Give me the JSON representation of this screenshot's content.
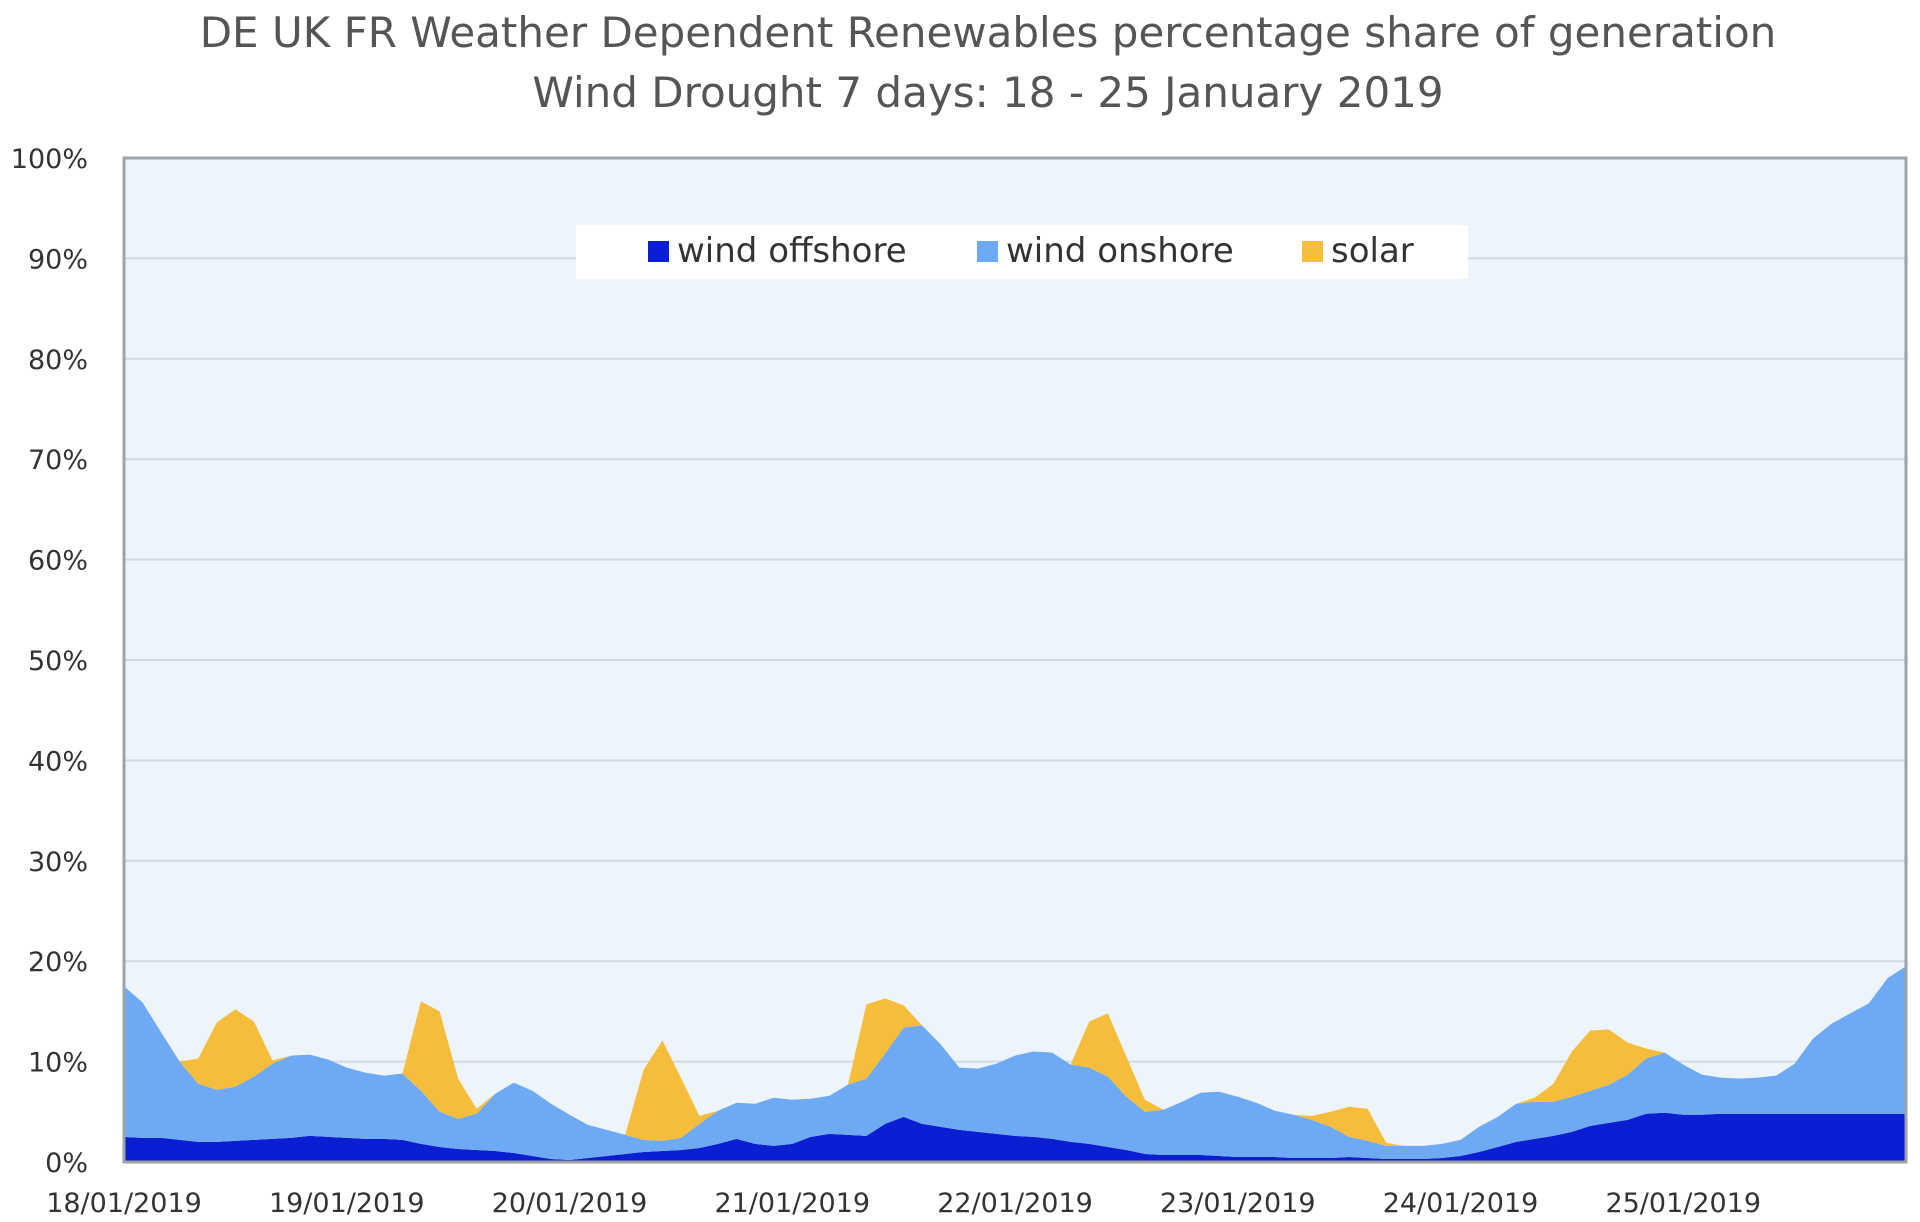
{
  "chart_data": {
    "type": "area",
    "stacked": true,
    "title": "DE UK FR Weather Dependent Renewables percentage share of generation",
    "subtitle": "Wind Drought 7 days:  18 - 25 January 2019",
    "xlabel": "",
    "ylabel": "",
    "ylim": [
      0,
      100
    ],
    "x_start": "18/01/2019",
    "x_end": "26/01/2019",
    "x_ticks": [
      "18/01/2019",
      "19/01/2019",
      "20/01/2019",
      "21/01/2019",
      "22/01/2019",
      "23/01/2019",
      "24/01/2019",
      "25/01/2019"
    ],
    "y_ticks": [
      "0%",
      "10%",
      "20%",
      "30%",
      "40%",
      "50%",
      "60%",
      "70%",
      "80%",
      "90%",
      "100%"
    ],
    "grid": true,
    "legend_position": "top-center",
    "colors": {
      "wind offshore": "#0a1fd1",
      "wind onshore": "#6eaaf4",
      "solar": "#f5bd3b",
      "plot_background": "#edf4fc",
      "gridline": "#d4d9e2",
      "frame": "#9ea3a8"
    },
    "x_day_offset": [
      0,
      0.083,
      0.167,
      0.25,
      0.333,
      0.417,
      0.5,
      0.583,
      0.667,
      0.75,
      0.833,
      0.917,
      1,
      1.083,
      1.167,
      1.25,
      1.333,
      1.417,
      1.5,
      1.583,
      1.667,
      1.75,
      1.833,
      1.917,
      2,
      2.083,
      2.167,
      2.25,
      2.333,
      2.417,
      2.5,
      2.583,
      2.667,
      2.75,
      2.833,
      2.917,
      3,
      3.083,
      3.167,
      3.25,
      3.333,
      3.417,
      3.5,
      3.583,
      3.667,
      3.75,
      3.833,
      3.917,
      4,
      4.083,
      4.167,
      4.25,
      4.333,
      4.417,
      4.5,
      4.583,
      4.667,
      4.75,
      4.833,
      4.917,
      5,
      5.083,
      5.167,
      5.25,
      5.333,
      5.417,
      5.5,
      5.583,
      5.667,
      5.75,
      5.833,
      5.917,
      6,
      6.083,
      6.167,
      6.25,
      6.333,
      6.417,
      6.5,
      6.583,
      6.667,
      6.75,
      6.833,
      6.917,
      7,
      7.083,
      7.167,
      7.25,
      7.333,
      7.417,
      7.5,
      7.583,
      7.667,
      7.75,
      7.833,
      7.917,
      8
    ],
    "series": [
      {
        "name": "wind offshore",
        "values": [
          2.5,
          2.4,
          2.4,
          2.2,
          2.0,
          2.0,
          2.1,
          2.2,
          2.3,
          2.4,
          2.6,
          2.5,
          2.4,
          2.3,
          2.3,
          2.2,
          1.8,
          1.5,
          1.3,
          1.2,
          1.1,
          0.9,
          0.6,
          0.3,
          0.2,
          0.4,
          0.6,
          0.8,
          1.0,
          1.1,
          1.2,
          1.4,
          1.8,
          2.3,
          1.8,
          1.6,
          1.8,
          2.5,
          2.8,
          2.7,
          2.6,
          3.8,
          4.5,
          3.8,
          3.5,
          3.2,
          3.0,
          2.8,
          2.6,
          2.5,
          2.3,
          2.0,
          1.8,
          1.5,
          1.2,
          0.8,
          0.7,
          0.7,
          0.7,
          0.6,
          0.5,
          0.5,
          0.5,
          0.4,
          0.4,
          0.4,
          0.5,
          0.4,
          0.3,
          0.3,
          0.3,
          0.4,
          0.6,
          1.0,
          1.5,
          2.0,
          2.3,
          2.6,
          3.0,
          3.6,
          3.9,
          4.2,
          4.8,
          4.9,
          4.7,
          4.7,
          4.8,
          4.8,
          4.8,
          4.8,
          4.8,
          4.8,
          4.8,
          4.8,
          4.8,
          4.8,
          4.8
        ]
      },
      {
        "name": "wind onshore",
        "values": [
          15.0,
          13.5,
          10.5,
          7.8,
          5.8,
          5.2,
          5.4,
          6.3,
          7.5,
          8.2,
          8.1,
          7.7,
          7.0,
          6.6,
          6.3,
          6.6,
          5.3,
          3.5,
          3.0,
          3.6,
          5.7,
          7.0,
          6.5,
          5.5,
          4.5,
          3.3,
          2.6,
          1.9,
          1.2,
          1.0,
          1.2,
          2.4,
          3.3,
          3.6,
          4.0,
          4.8,
          4.4,
          3.8,
          3.8,
          5.0,
          5.7,
          7.0,
          8.9,
          9.8,
          8.2,
          6.2,
          6.3,
          7.0,
          8.0,
          8.5,
          8.6,
          7.7,
          7.6,
          7.0,
          5.3,
          4.2,
          4.5,
          5.3,
          6.2,
          6.4,
          6.0,
          5.4,
          4.6,
          4.3,
          3.8,
          3.1,
          2.0,
          1.7,
          1.3,
          1.3,
          1.3,
          1.4,
          1.6,
          2.5,
          3.0,
          3.8,
          3.7,
          3.4,
          3.5,
          3.5,
          3.8,
          4.5,
          5.5,
          6.0,
          5.0,
          4.0,
          3.6,
          3.5,
          3.6,
          3.8,
          5.0,
          7.5,
          9.0,
          10.0,
          11.0,
          13.5,
          14.7
        ]
      },
      {
        "name": "solar",
        "values": [
          0,
          0,
          0,
          0,
          2.5,
          6.7,
          7.7,
          5.5,
          0.3,
          0,
          0,
          0,
          0,
          0,
          0,
          0,
          8.9,
          10.0,
          4.0,
          0.5,
          0,
          0,
          0,
          0,
          0,
          0,
          0,
          0,
          7.0,
          10.0,
          6.0,
          0.8,
          0,
          0,
          0,
          0,
          0,
          0,
          0,
          0,
          7.4,
          5.5,
          2.2,
          0,
          0,
          0,
          0,
          0,
          0,
          0,
          0,
          0,
          4.6,
          6.3,
          4.0,
          1.2,
          0,
          0,
          0,
          0,
          0,
          0,
          0,
          0,
          0.4,
          1.5,
          3.0,
          3.2,
          0.3,
          0,
          0,
          0,
          0,
          0,
          0,
          0,
          0.4,
          1.8,
          4.5,
          6.0,
          5.5,
          3.2,
          1.0,
          0,
          0,
          0,
          0,
          0,
          0,
          0,
          0,
          0,
          0,
          0,
          0,
          0,
          0
        ]
      }
    ]
  }
}
